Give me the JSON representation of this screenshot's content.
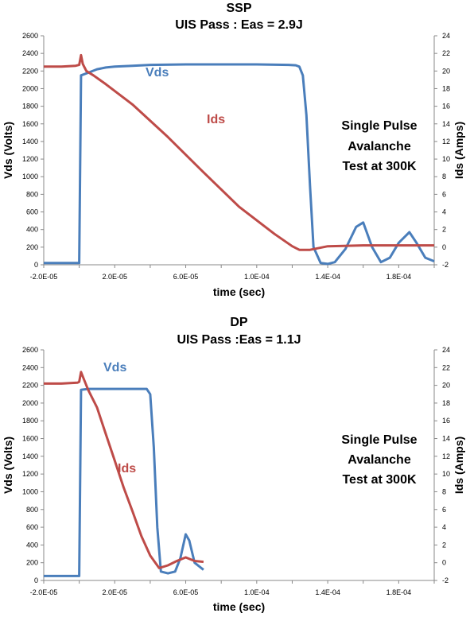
{
  "charts": [
    {
      "title": "SSP",
      "subtitle": "UIS Pass : Eas = 2.9J",
      "xlabel": "time (sec)",
      "ylabel_left": "Vds (Volts)",
      "ylabel_right": "Ids (Amps)",
      "annotation": [
        "Single Pulse",
        "Avalanche",
        "Test at 300K"
      ],
      "x_ticks": [
        "-2.0E-05",
        "2.0E-05",
        "6.0E-05",
        "1.0E-04",
        "1.4E-04",
        "1.8E-04"
      ],
      "y_left_ticks": [
        "0",
        "200",
        "400",
        "600",
        "800",
        "1000",
        "1200",
        "1400",
        "1600",
        "1800",
        "2000",
        "2200",
        "2400",
        "2600"
      ],
      "y_right_ticks": [
        "-2",
        "0",
        "2",
        "4",
        "6",
        "8",
        "10",
        "12",
        "14",
        "16",
        "18",
        "20",
        "22",
        "24"
      ],
      "series_labels": {
        "vds": "Vds",
        "ids": "Ids"
      }
    },
    {
      "title": "DP",
      "subtitle": "UIS Pass :Eas = 1.1J",
      "xlabel": "time (sec)",
      "ylabel_left": "Vds (Volts)",
      "ylabel_right": "Ids (Amps)",
      "annotation": [
        "Single Pulse",
        "Avalanche",
        "Test at 300K"
      ],
      "x_ticks": [
        "-2.0E-05",
        "2.0E-05",
        "6.0E-05",
        "1.0E-04",
        "1.4E-04",
        "1.8E-04"
      ],
      "y_left_ticks": [
        "0",
        "200",
        "400",
        "600",
        "800",
        "1000",
        "1200",
        "1400",
        "1600",
        "1800",
        "2000",
        "2200",
        "2400",
        "2600"
      ],
      "y_right_ticks": [
        "-2",
        "0",
        "2",
        "4",
        "6",
        "8",
        "10",
        "12",
        "14",
        "16",
        "18",
        "20",
        "22",
        "24"
      ],
      "series_labels": {
        "vds": "Vds",
        "ids": "Ids"
      }
    }
  ],
  "chart_data": [
    {
      "type": "line",
      "title": "SSP",
      "subtitle": "UIS Pass : Eas = 2.9J",
      "xlabel": "time (sec)",
      "ylabel": "Vds (Volts)",
      "y2label": "Ids (Amps)",
      "xlim": [
        -2e-05,
        0.0002
      ],
      "ylim": [
        0,
        2600
      ],
      "y2lim": [
        -2,
        24
      ],
      "grid": false,
      "series": [
        {
          "name": "Vds",
          "axis": "left",
          "color": "#4a7ebb",
          "x": [
            -2e-05,
            -1e-05,
            -1e-06,
            0,
            1e-06,
            5e-06,
            1e-05,
            1.5e-05,
            2e-05,
            3e-05,
            4e-05,
            6e-05,
            8e-05,
            0.0001,
            0.000118,
            0.000122,
            0.000124,
            0.000126,
            0.000128,
            0.00013,
            0.000132,
            0.000136,
            0.00014,
            0.000144,
            0.00015,
            0.000156,
            0.00016,
            0.000165,
            0.00017,
            0.000175,
            0.00018,
            0.000186,
            0.00019,
            0.000195,
            0.0002
          ],
          "y": [
            20,
            20,
            20,
            20,
            2150,
            2180,
            2220,
            2240,
            2250,
            2260,
            2270,
            2275,
            2275,
            2275,
            2270,
            2265,
            2250,
            2150,
            1700,
            900,
            200,
            20,
            10,
            30,
            180,
            430,
            480,
            200,
            30,
            80,
            250,
            370,
            250,
            80,
            40
          ]
        },
        {
          "name": "Ids",
          "axis": "right",
          "color": "#be4b48",
          "x": [
            -2e-05,
            -1e-05,
            -2e-06,
            0,
            1e-06,
            2e-06,
            4e-06,
            8e-06,
            1.5e-05,
            3e-05,
            5e-05,
            7e-05,
            9e-05,
            0.00011,
            0.00012,
            0.000124,
            0.00013,
            0.00014,
            0.00016,
            0.00018,
            0.0002
          ],
          "y": [
            20.5,
            20.5,
            20.6,
            20.7,
            21.8,
            20.8,
            20,
            19.5,
            18.5,
            16.2,
            12.5,
            8.5,
            4.6,
            1.5,
            0.1,
            -0.3,
            -0.3,
            0.1,
            0.2,
            0.2,
            0.2
          ]
        }
      ]
    },
    {
      "type": "line",
      "title": "DP",
      "subtitle": "UIS Pass :Eas = 1.1J",
      "xlabel": "time (sec)",
      "ylabel": "Vds (Volts)",
      "y2label": "Ids (Amps)",
      "xlim": [
        -2e-05,
        0.0002
      ],
      "ylim": [
        0,
        2600
      ],
      "y2lim": [
        -2,
        24
      ],
      "grid": false,
      "series": [
        {
          "name": "Vds",
          "axis": "left",
          "color": "#4a7ebb",
          "x": [
            -2e-05,
            -1e-05,
            -1e-06,
            0,
            1e-06,
            5e-06,
            1e-05,
            2e-05,
            3e-05,
            3.8e-05,
            4e-05,
            4.2e-05,
            4.4e-05,
            4.6e-05,
            5e-05,
            5.4e-05,
            5.7e-05,
            6e-05,
            6.2e-05,
            6.5e-05,
            7e-05
          ],
          "y": [
            50,
            50,
            50,
            50,
            2150,
            2160,
            2160,
            2160,
            2160,
            2160,
            2100,
            1500,
            600,
            100,
            80,
            100,
            250,
            520,
            450,
            200,
            120
          ]
        },
        {
          "name": "Ids",
          "axis": "right",
          "color": "#be4b48",
          "x": [
            -2e-05,
            -1e-05,
            -1e-06,
            0,
            1e-06,
            3e-06,
            5e-06,
            1e-05,
            1.5e-05,
            2e-05,
            2.5e-05,
            3e-05,
            3.5e-05,
            4e-05,
            4.5e-05,
            5e-05,
            5.5e-05,
            6e-05,
            6.5e-05,
            7e-05
          ],
          "y": [
            20.2,
            20.2,
            20.3,
            20.4,
            21.5,
            20.5,
            19.5,
            17.5,
            14.5,
            11.5,
            8.5,
            5.8,
            3.0,
            0.8,
            -0.6,
            -0.3,
            0.2,
            0.6,
            0.2,
            0.1
          ]
        }
      ]
    }
  ]
}
